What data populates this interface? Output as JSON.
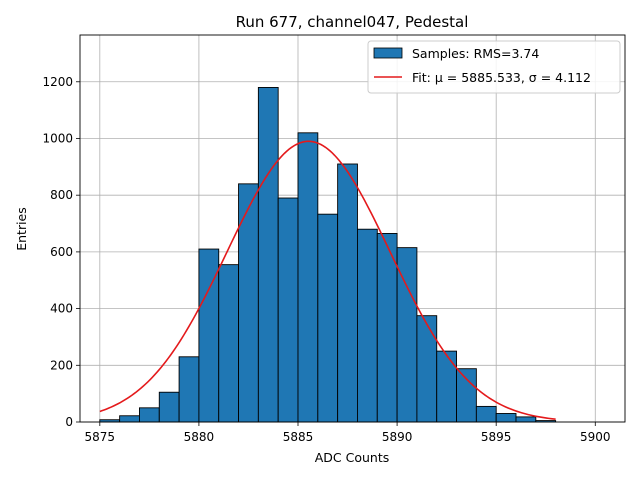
{
  "chart_data": {
    "type": "bar",
    "title": "Run 677, channel047, Pedestal",
    "xlabel": "ADC Counts",
    "ylabel": "Entries",
    "xlim": [
      5874,
      5901.5
    ],
    "ylim": [
      0,
      1365
    ],
    "grid": true,
    "legend_position": "top-right",
    "x_ticks": [
      5875,
      5880,
      5885,
      5890,
      5895,
      5900
    ],
    "y_ticks": [
      0,
      200,
      400,
      600,
      800,
      1000,
      1200
    ],
    "bins": {
      "start": 5875,
      "width": 1,
      "values": [
        8,
        22,
        50,
        105,
        230,
        610,
        555,
        840,
        1180,
        790,
        1020,
        733,
        910,
        680,
        665,
        615,
        375,
        250,
        188,
        55,
        30,
        18,
        5
      ]
    },
    "fit": {
      "mu": 5885.533,
      "sigma": 4.112,
      "amplitude": 990,
      "x_range": [
        5875,
        5898
      ]
    },
    "series": [
      {
        "name": "Samples: RMS=3.74",
        "kind": "histogram",
        "color": "#1f77b4"
      },
      {
        "name": "Fit: μ = 5885.533, σ = 4.112",
        "kind": "line",
        "color": "#e41a1c"
      }
    ]
  }
}
